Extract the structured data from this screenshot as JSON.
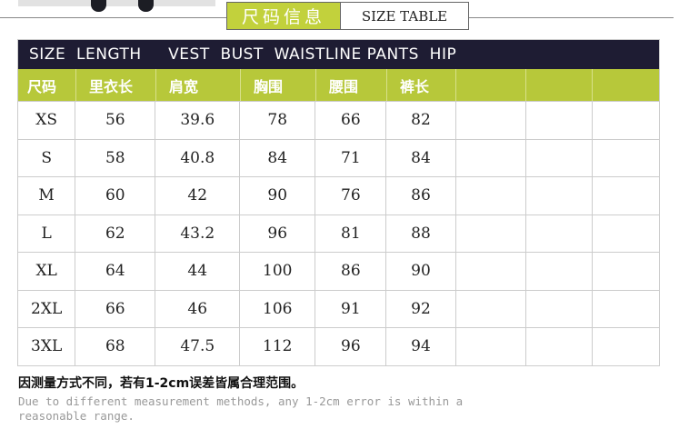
{
  "title": {
    "cn": "尺码信息",
    "en": "SIZE TABLE"
  },
  "colors": {
    "accent": "#b7c83a",
    "header_dark": "#1e1c33"
  },
  "header_en": "SIZE  LENGTH     VEST  BUST  WAISTLINE PANTS  HIP",
  "columns_cn": [
    "尺码",
    "里衣长",
    "肩宽",
    "胸围",
    "腰围",
    "裤长",
    "",
    "",
    ""
  ],
  "rows": [
    [
      "XS",
      "56",
      "39.6",
      "78",
      "66",
      "82"
    ],
    [
      "S",
      "58",
      "40.8",
      "84",
      "71",
      "84"
    ],
    [
      "M",
      "60",
      "42",
      "90",
      "76",
      "86"
    ],
    [
      "L",
      "62",
      "43.2",
      "96",
      "81",
      "88"
    ],
    [
      "XL",
      "64",
      "44",
      "100",
      "86",
      "90"
    ],
    [
      "2XL",
      "66",
      "46",
      "106",
      "91",
      "92"
    ],
    [
      "3XL",
      "68",
      "47.5",
      "112",
      "96",
      "94"
    ]
  ],
  "note": {
    "cn": "因测量方式不同，若有1-2cm误差皆属合理范围。",
    "en": "Due to different measurement methods, any 1-2cm error is within a reasonable range."
  }
}
